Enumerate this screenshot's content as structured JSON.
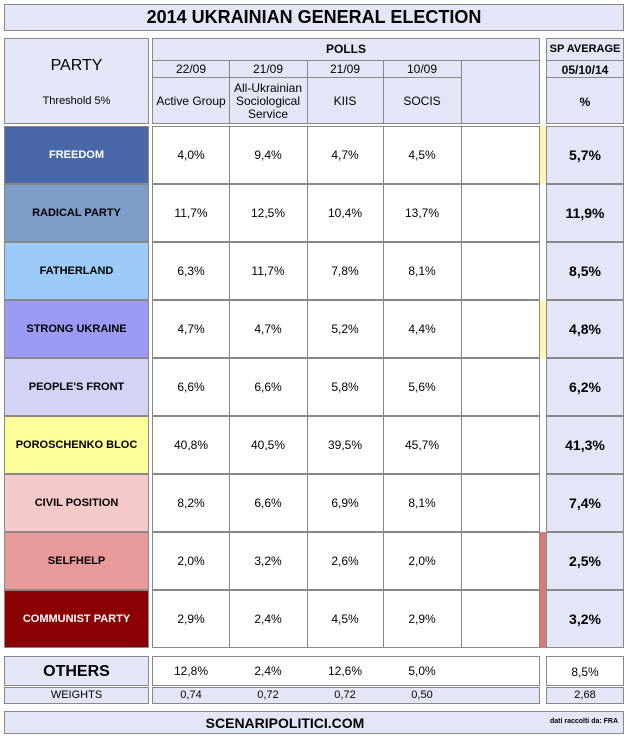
{
  "title": "2014 UKRAINIAN GENERAL ELECTION",
  "party_header": {
    "label": "PARTY",
    "threshold": "Threshold 5%"
  },
  "polls_header": "POLLS",
  "polls": [
    {
      "date": "22/09",
      "name": "Active Group"
    },
    {
      "date": "21/09",
      "name": "All-Ukrainian Sociological Service"
    },
    {
      "date": "21/09",
      "name": "KIIS"
    },
    {
      "date": "10/09",
      "name": "SOCIS"
    }
  ],
  "avg_header": {
    "label": "SP AVERAGE",
    "date": "05/10/14",
    "unit": "%"
  },
  "parties": [
    {
      "name": "FREEDOM",
      "color": "#4a68a8",
      "text": "#ffffff",
      "values": [
        "4,0%",
        "9,4%",
        "4,7%",
        "4,5%"
      ],
      "avg": "5,7%",
      "bar": "#fff6b0"
    },
    {
      "name": "RADICAL PARTY",
      "color": "#7d9cc8",
      "text": "#000000",
      "values": [
        "11,7%",
        "12,5%",
        "10,4%",
        "13,7%"
      ],
      "avg": "11,9%",
      "bar": ""
    },
    {
      "name": "FATHERLAND",
      "color": "#9ccbf7",
      "text": "#000000",
      "values": [
        "6,3%",
        "11,7%",
        "7,8%",
        "8,1%"
      ],
      "avg": "8,5%",
      "bar": ""
    },
    {
      "name": "STRONG UKRAINE",
      "color": "#9b9bf5",
      "text": "#000000",
      "values": [
        "4,7%",
        "4,7%",
        "5,2%",
        "4,4%"
      ],
      "avg": "4,8%",
      "bar": "#fff6b0"
    },
    {
      "name": "PEOPLE'S FRONT",
      "color": "#d3d3f5",
      "text": "#000000",
      "values": [
        "6,6%",
        "6,6%",
        "5,8%",
        "5,6%"
      ],
      "avg": "6,2%",
      "bar": ""
    },
    {
      "name": "POROSCHENKO BLOC",
      "color": "#fdfd9a",
      "text": "#000000",
      "values": [
        "40,8%",
        "40,5%",
        "39,5%",
        "45,7%"
      ],
      "avg": "41,3%",
      "bar": ""
    },
    {
      "name": "CIVIL POSITION",
      "color": "#f3c9c9",
      "text": "#000000",
      "values": [
        "8,2%",
        "6,6%",
        "6,9%",
        "8,1%"
      ],
      "avg": "7,4%",
      "bar": ""
    },
    {
      "name": "SELFHELP",
      "color": "#e89a9a",
      "text": "#000000",
      "values": [
        "2,0%",
        "3,2%",
        "2,6%",
        "2,0%"
      ],
      "avg": "2,5%",
      "bar": "#d87a7a"
    },
    {
      "name": "COMMUNIST PARTY",
      "color": "#8b0000",
      "text": "#ffffff",
      "values": [
        "2,9%",
        "2,4%",
        "4,5%",
        "2,9%"
      ],
      "avg": "3,2%",
      "bar": "#d87a7a"
    }
  ],
  "others": {
    "label": "OTHERS",
    "values": [
      "12,8%",
      "2,4%",
      "12,6%",
      "5,0%"
    ],
    "avg": "8,5%"
  },
  "weights": {
    "label": "WEIGHTS",
    "values": [
      "0,74",
      "0,72",
      "0,72",
      "0,50"
    ],
    "total": "2,68"
  },
  "footer": {
    "site": "SCENARIPOLITICI.COM",
    "note": "dati raccolti da: FRA"
  }
}
